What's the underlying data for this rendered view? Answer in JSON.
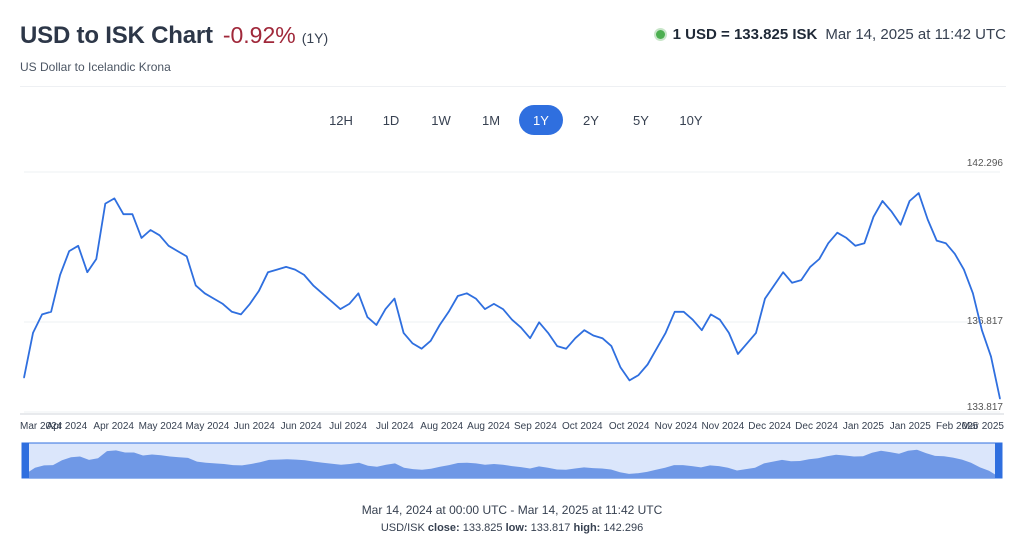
{
  "header": {
    "title": "USD to ISK Chart",
    "change": "-0.92%",
    "period": "(1Y)",
    "subtitle": "US Dollar to Icelandic Krona"
  },
  "rate": {
    "value": "1 USD = 133.825 ISK",
    "time": "Mar 14, 2025 at 11:42 UTC",
    "dot_color": "#4caf50"
  },
  "ranges": [
    "12H",
    "1D",
    "1W",
    "1M",
    "1Y",
    "2Y",
    "5Y",
    "10Y"
  ],
  "active_range": "1Y",
  "footer": {
    "range": "Mar 14, 2024 at 00:00 UTC - Mar 14, 2025 at 11:42 UTC",
    "pair": "USD/ISK",
    "close_label": "close:",
    "close": "133.825",
    "low_label": "low:",
    "low": "133.817",
    "high_label": "high:",
    "high": "142.296"
  },
  "chart_data": {
    "type": "line",
    "line_color": "#2f6fdf",
    "y_labels": [
      "142.296",
      "136.817",
      "133.817"
    ],
    "ylim": [
      133.5,
      142.6
    ],
    "x_ticks": [
      "Mar 2024",
      "Apr 2024",
      "Apr 2024",
      "May 2024",
      "May 2024",
      "Jun 2024",
      "Jun 2024",
      "Jul 2024",
      "Jul 2024",
      "Aug 2024",
      "Aug 2024",
      "Sep 2024",
      "Oct 2024",
      "Oct 2024",
      "Nov 2024",
      "Nov 2024",
      "Dec 2024",
      "Dec 2024",
      "Jan 2025",
      "Jan 2025",
      "Feb 2025",
      "Mar 2025"
    ],
    "series": [
      {
        "values": [
          134.8,
          136.5,
          137.2,
          137.3,
          138.7,
          139.6,
          139.8,
          138.8,
          139.3,
          141.4,
          141.6,
          141.0,
          141.0,
          140.1,
          140.4,
          140.2,
          139.8,
          139.6,
          139.4,
          138.3,
          138.0,
          137.8,
          137.6,
          137.3,
          137.2,
          137.6,
          138.1,
          138.8,
          138.9,
          139.0,
          138.9,
          138.7,
          138.3,
          138.0,
          137.7,
          137.4,
          137.6,
          138.0,
          137.1,
          136.8,
          137.4,
          137.8,
          136.5,
          136.1,
          135.9,
          136.2,
          136.8,
          137.3,
          137.9,
          138.0,
          137.8,
          137.4,
          137.6,
          137.4,
          137.0,
          136.7,
          136.3,
          136.9,
          136.5,
          136.0,
          135.9,
          136.3,
          136.6,
          136.4,
          136.3,
          136.0,
          135.2,
          134.7,
          134.9,
          135.3,
          135.9,
          136.5,
          137.3,
          137.3,
          137.0,
          136.6,
          137.2,
          137.0,
          136.5,
          135.7,
          136.1,
          136.5,
          137.8,
          138.3,
          138.8,
          138.4,
          138.5,
          139.0,
          139.3,
          139.9,
          140.3,
          140.1,
          139.8,
          139.9,
          140.9,
          141.5,
          141.1,
          140.6,
          141.5,
          141.8,
          140.8,
          140.0,
          139.9,
          139.5,
          138.9,
          138.0,
          136.6,
          135.6,
          134.0
        ]
      }
    ],
    "navigator": true
  }
}
